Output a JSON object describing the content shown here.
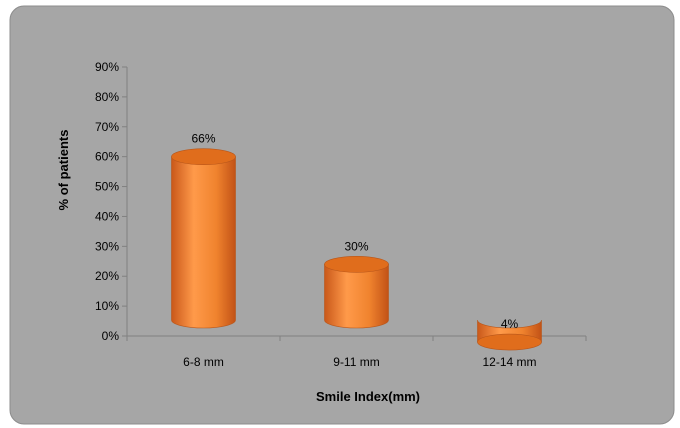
{
  "chart_data": {
    "type": "bar",
    "style": "3d-cylinder",
    "categories": [
      "6-8 mm",
      "9-11 mm",
      "12-14 mm"
    ],
    "values": [
      66,
      30,
      4
    ],
    "data_labels": [
      "66%",
      "30%",
      "4%"
    ],
    "xlabel": "Smile Index(mm)",
    "ylabel": "% of patients",
    "ylim": [
      0,
      90
    ],
    "y_ticks": [
      "0%",
      "10%",
      "20%",
      "30%",
      "40%",
      "50%",
      "60%",
      "70%",
      "80%",
      "90%"
    ],
    "grid": false,
    "legend": "none",
    "colors": {
      "background": "#a6a6a6",
      "bar_body": "#f0832e",
      "bar_top": "#e06d1c",
      "bar_edge": "#b8561a"
    }
  }
}
